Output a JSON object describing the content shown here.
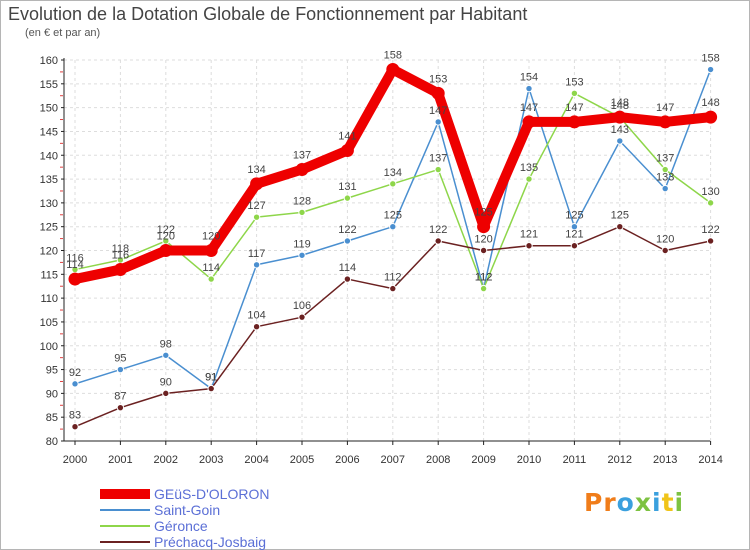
{
  "chart_data": {
    "type": "line",
    "title": "Evolution de la Dotation Globale de Fonctionnement par Habitant",
    "subtitle": "(en € et par an)",
    "categories": [
      "2000",
      "2001",
      "2002",
      "2003",
      "2004",
      "2005",
      "2006",
      "2007",
      "2008",
      "2009",
      "2010",
      "2011",
      "2012",
      "2013",
      "2014"
    ],
    "ylim": [
      80,
      160
    ],
    "yticks": [
      80,
      85,
      90,
      95,
      100,
      105,
      110,
      115,
      120,
      125,
      130,
      135,
      140,
      145,
      150,
      155,
      160
    ],
    "series": [
      {
        "name": "GEüS-D'OLORON",
        "color": "#ee0000",
        "emphasis": true,
        "values": [
          114,
          116,
          120,
          120,
          134,
          137,
          141,
          158,
          153,
          125,
          147,
          147,
          148,
          147,
          148
        ]
      },
      {
        "name": "Saint-Goin",
        "color": "#4a8fd0",
        "values": [
          92,
          95,
          98,
          91,
          117,
          119,
          122,
          125,
          147,
          112,
          154,
          125,
          143,
          133,
          158
        ]
      },
      {
        "name": "Géronce",
        "color": "#8ed64a",
        "values": [
          116,
          118,
          122,
          114,
          127,
          128,
          131,
          134,
          137,
          112,
          135,
          153,
          148,
          137,
          130
        ]
      },
      {
        "name": "Préchacq-Josbaig",
        "color": "#6b2121",
        "values": [
          83,
          87,
          90,
          91,
          104,
          106,
          114,
          112,
          122,
          120,
          121,
          121,
          125,
          120,
          122
        ]
      }
    ]
  },
  "logo": {
    "letters": [
      "P",
      "r",
      "o",
      "x",
      "i",
      "t",
      "i"
    ],
    "colors": [
      "#f07d1a",
      "#f07d1a",
      "#3aa0de",
      "#7dc241",
      "#3aa0de",
      "#f0c419",
      "#7dc241"
    ]
  }
}
